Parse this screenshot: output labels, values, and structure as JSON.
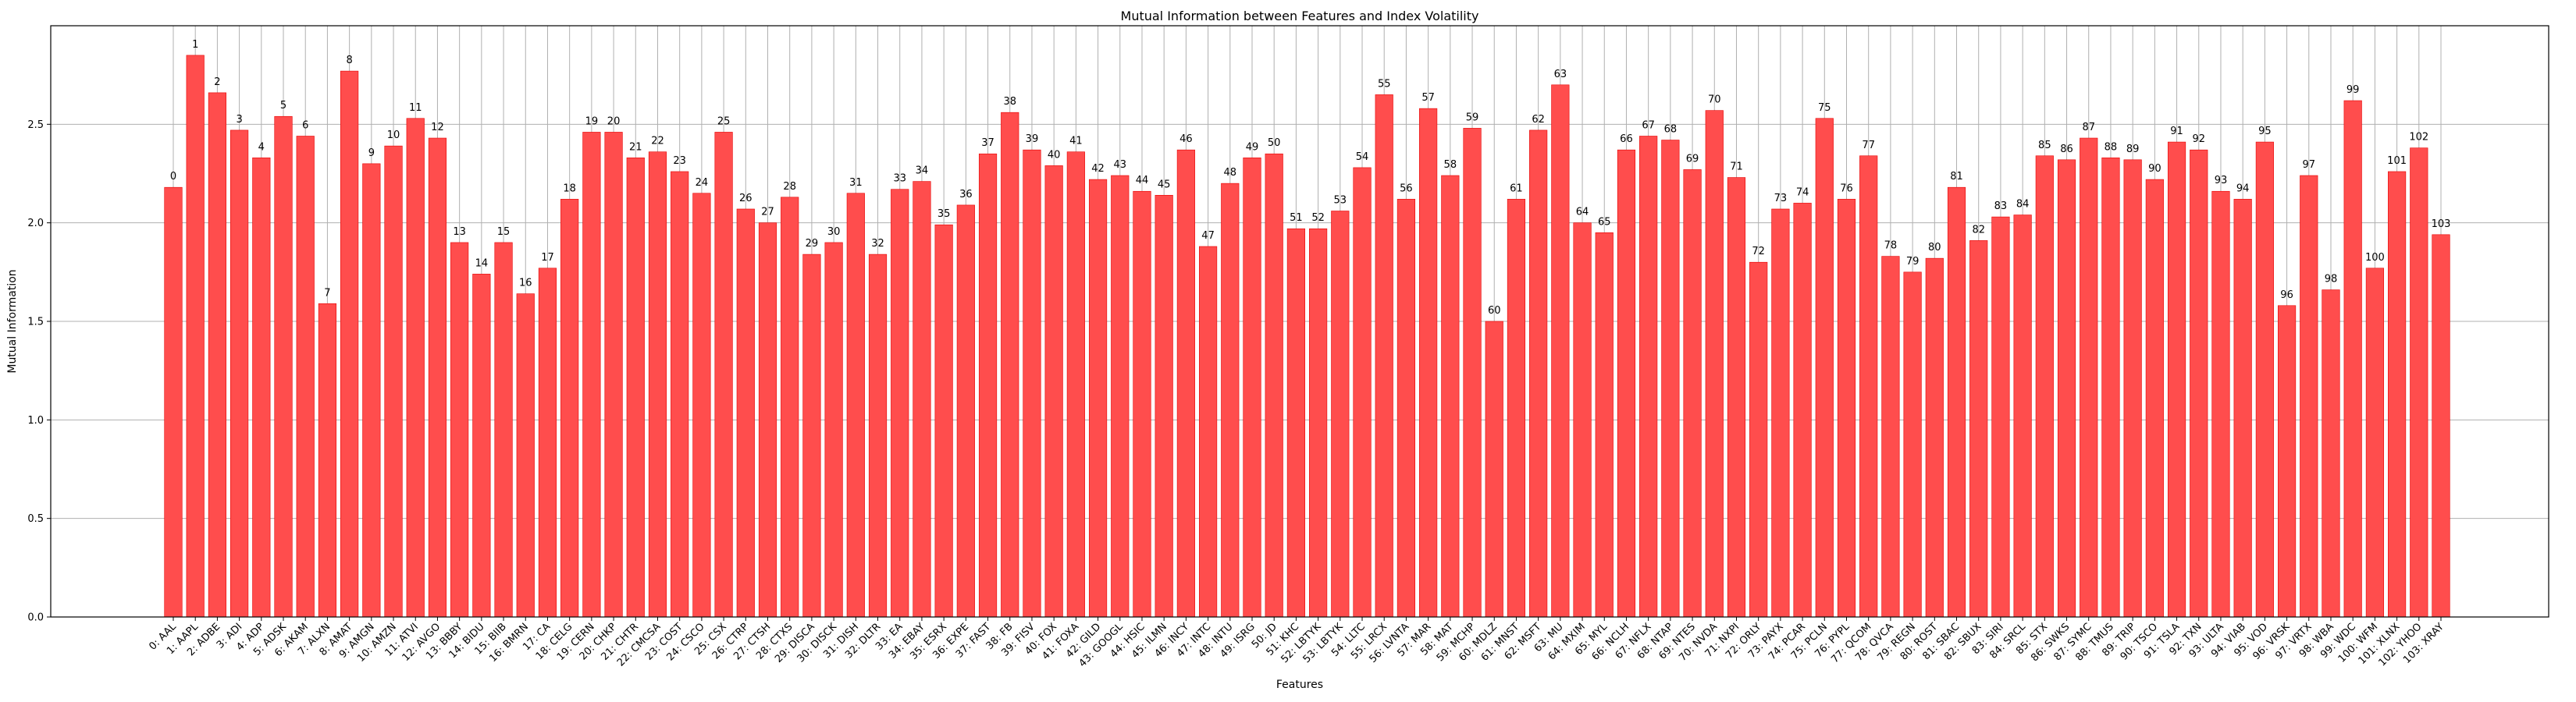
{
  "chart_data": {
    "type": "bar",
    "title": "Mutual Information between Features and Index Volatility",
    "xlabel": "Features",
    "ylabel": "Mutual Information",
    "ylim": [
      0,
      3.0
    ],
    "yticks": [
      "0.0",
      "0.5",
      "1.0",
      "1.5",
      "2.0",
      "2.5"
    ],
    "grid": true,
    "bar_color": "#ff4d4d",
    "bar_edge_color": "#e60000",
    "categories": [
      "0: AAL",
      "1: AAPL",
      "2: ADBE",
      "3: ADI",
      "4: ADP",
      "5: ADSK",
      "6: AKAM",
      "7: ALXN",
      "8: AMAT",
      "9: AMGN",
      "10: AMZN",
      "11: ATVI",
      "12: AVGO",
      "13: BBBY",
      "14: BIDU",
      "15: BIIB",
      "16: BMRN",
      "17: CA",
      "18: CELG",
      "19: CERN",
      "20: CHKP",
      "21: CHTR",
      "22: CMCSA",
      "23: COST",
      "24: CSCO",
      "25: CSX",
      "26: CTRP",
      "27: CTSH",
      "28: CTXS",
      "29: DISCA",
      "30: DISCK",
      "31: DISH",
      "32: DLTR",
      "33: EA",
      "34: EBAY",
      "35: ESRX",
      "36: EXPE",
      "37: FAST",
      "38: FB",
      "39: FISV",
      "40: FOX",
      "41: FOXA",
      "42: GILD",
      "43: GOOGL",
      "44: HSIC",
      "45: ILMN",
      "46: INCY",
      "47: INTC",
      "48: INTU",
      "49: ISRG",
      "50: JD",
      "51: KHC",
      "52: LBTYK",
      "53: LBTYK",
      "54: LLTC",
      "55: LRCX",
      "56: LVNTA",
      "57: MAR",
      "58: MAT",
      "59: MCHP",
      "60: MDLZ",
      "61: MNST",
      "62: MSFT",
      "63: MU",
      "64: MXIM",
      "65: MYL",
      "66: NCLH",
      "67: NFLX",
      "68: NTAP",
      "69: NTES",
      "70: NVDA",
      "71: NXPI",
      "72: ORLY",
      "73: PAYX",
      "74: PCAR",
      "75: PCLN",
      "76: PYPL",
      "77: QCOM",
      "78: QVCA",
      "79: REGN",
      "80: ROST",
      "81: SBAC",
      "82: SBUX",
      "83: SIRI",
      "84: SRCL",
      "85: STX",
      "86: SWKS",
      "87: SYMC",
      "88: TMUS",
      "89: TRIP",
      "90: TSCO",
      "91: TSLA",
      "92: TXN",
      "93: ULTA",
      "94: VIAB",
      "95: VOD",
      "96: VRSK",
      "97: VRTX",
      "98: WBA",
      "99: WDC",
      "100: WFM",
      "101: XLNX",
      "102: YHOO",
      "103: XRAY"
    ],
    "bar_labels": [
      "0",
      "1",
      "2",
      "3",
      "4",
      "5",
      "6",
      "7",
      "8",
      "9",
      "10",
      "11",
      "12",
      "13",
      "14",
      "15",
      "16",
      "17",
      "18",
      "19",
      "20",
      "21",
      "22",
      "23",
      "24",
      "25",
      "26",
      "27",
      "28",
      "29",
      "30",
      "31",
      "32",
      "33",
      "34",
      "35",
      "36",
      "37",
      "38",
      "39",
      "40",
      "41",
      "42",
      "43",
      "44",
      "45",
      "46",
      "47",
      "48",
      "49",
      "50",
      "51",
      "52",
      "53",
      "54",
      "55",
      "56",
      "57",
      "58",
      "59",
      "60",
      "61",
      "62",
      "63",
      "64",
      "65",
      "66",
      "67",
      "68",
      "69",
      "70",
      "71",
      "72",
      "73",
      "74",
      "75",
      "76",
      "77",
      "78",
      "79",
      "80",
      "81",
      "82",
      "83",
      "84",
      "85",
      "86",
      "87",
      "88",
      "89",
      "90",
      "91",
      "92",
      "93",
      "94",
      "95",
      "96",
      "97",
      "98",
      "99",
      "100",
      "101",
      "102",
      "103"
    ],
    "values": [
      2.18,
      2.85,
      2.66,
      2.47,
      2.33,
      2.54,
      2.44,
      1.59,
      2.77,
      2.3,
      2.39,
      2.53,
      2.43,
      1.9,
      1.74,
      1.9,
      1.64,
      1.77,
      2.12,
      2.46,
      2.46,
      2.33,
      2.36,
      2.26,
      2.15,
      2.46,
      2.07,
      2.0,
      2.13,
      1.84,
      1.9,
      2.15,
      1.84,
      2.17,
      2.21,
      1.99,
      2.09,
      2.35,
      2.56,
      2.37,
      2.29,
      2.36,
      2.22,
      2.24,
      2.16,
      2.14,
      2.37,
      1.88,
      2.2,
      2.33,
      2.35,
      1.97,
      1.97,
      2.06,
      2.28,
      2.65,
      2.12,
      2.58,
      2.24,
      2.48,
      1.5,
      2.12,
      2.47,
      2.7,
      2.0,
      1.95,
      2.37,
      2.44,
      2.42,
      2.27,
      2.57,
      2.23,
      1.8,
      2.07,
      2.1,
      2.53,
      2.12,
      2.34,
      1.83,
      1.75,
      1.82,
      2.18,
      1.91,
      2.03,
      2.04,
      2.34,
      2.32,
      2.43,
      2.33,
      2.32,
      2.22,
      2.41,
      2.37,
      2.16,
      2.12,
      2.41,
      1.58,
      2.24,
      1.66,
      2.62,
      1.77,
      2.26,
      2.38,
      1.94
    ]
  }
}
